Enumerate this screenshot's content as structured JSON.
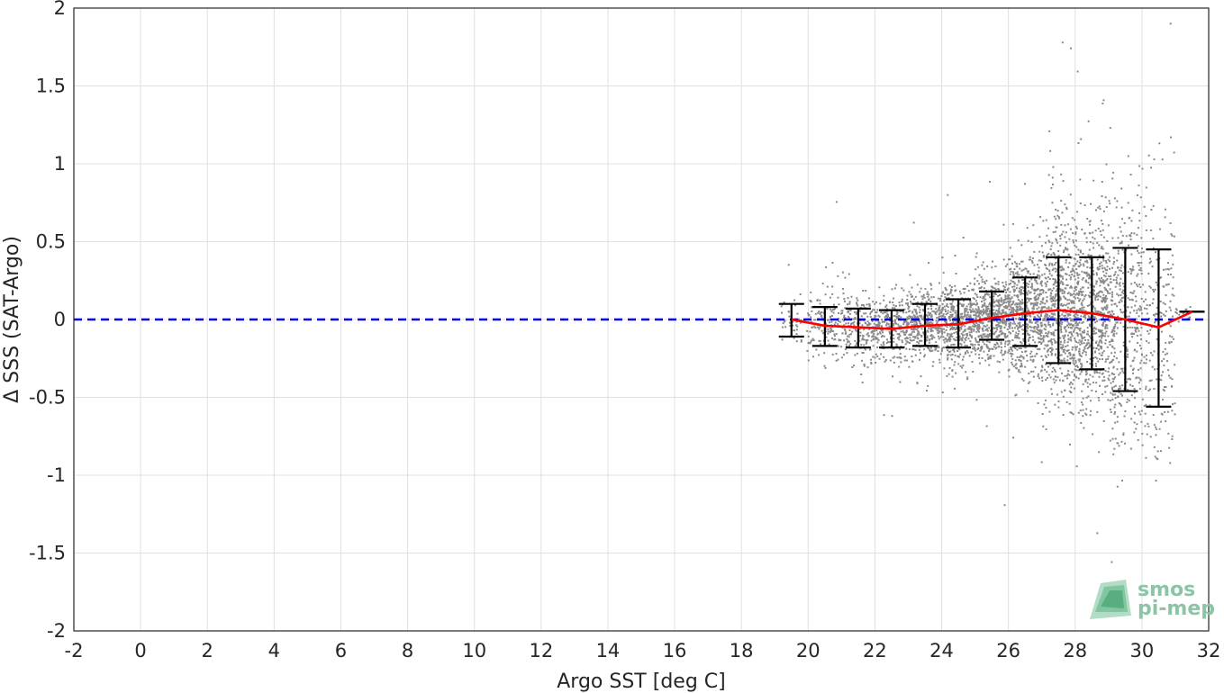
{
  "chart_data": {
    "type": "scatter",
    "xlabel": "Argo SST [deg C]",
    "ylabel": "Δ SSS (SAT-Argo)",
    "xlim": [
      -2,
      32
    ],
    "ylim": [
      -2,
      2
    ],
    "x_ticks": [
      "-2",
      "0",
      "2",
      "4",
      "6",
      "8",
      "10",
      "12",
      "14",
      "16",
      "18",
      "20",
      "22",
      "24",
      "26",
      "28",
      "30",
      "32"
    ],
    "y_ticks": [
      "-2",
      "-1.5",
      "-1",
      "-0.5",
      "0",
      "0.5",
      "1",
      "1.5",
      "2"
    ],
    "grid": true,
    "reference_line": {
      "y": 0,
      "style": "dashed",
      "color": "#0000dd"
    },
    "scatter_color": "#8a8a8a",
    "mean_line_color": "#ff0000",
    "errorbar_color": "#000000",
    "binned_stats": [
      {
        "x": 19.5,
        "mean": 0.0,
        "lower": -0.11,
        "upper": 0.1
      },
      {
        "x": 20.5,
        "mean": -0.04,
        "lower": -0.17,
        "upper": 0.08
      },
      {
        "x": 21.5,
        "mean": -0.05,
        "lower": -0.18,
        "upper": 0.07
      },
      {
        "x": 22.5,
        "mean": -0.06,
        "lower": -0.18,
        "upper": 0.06
      },
      {
        "x": 23.5,
        "mean": -0.04,
        "lower": -0.17,
        "upper": 0.1
      },
      {
        "x": 24.5,
        "mean": -0.03,
        "lower": -0.18,
        "upper": 0.13
      },
      {
        "x": 25.5,
        "mean": 0.01,
        "lower": -0.13,
        "upper": 0.18
      },
      {
        "x": 26.5,
        "mean": 0.04,
        "lower": -0.17,
        "upper": 0.27
      },
      {
        "x": 27.5,
        "mean": 0.06,
        "lower": -0.28,
        "upper": 0.4
      },
      {
        "x": 28.5,
        "mean": 0.04,
        "lower": -0.32,
        "upper": 0.4
      },
      {
        "x": 29.5,
        "mean": 0.0,
        "lower": -0.46,
        "upper": 0.46
      },
      {
        "x": 30.5,
        "mean": -0.05,
        "lower": -0.56,
        "upper": 0.45
      },
      {
        "x": 31.5,
        "mean": 0.05,
        "lower": 0.05,
        "upper": 0.05
      }
    ],
    "scatter_extent": {
      "x": [
        19.2,
        31.5
      ],
      "y": [
        -1.8,
        2.0
      ]
    }
  },
  "watermark": {
    "line1": "smos",
    "line2": "pi-mep"
  }
}
